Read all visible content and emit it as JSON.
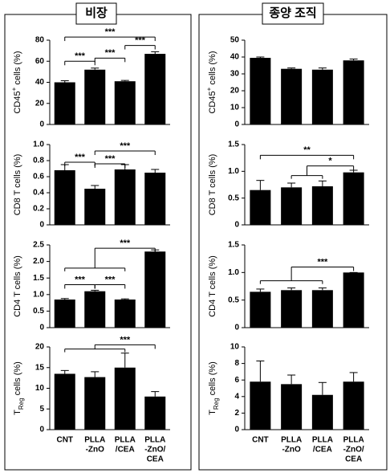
{
  "chart_data": [
    {
      "type": "bar",
      "title": "비장",
      "ylabel": [
        {
          "text": "CD45"
        },
        {
          "text": "+",
          "shift": "super"
        },
        {
          "text": " cells  (%)"
        }
      ],
      "categories": [
        null,
        null,
        null,
        null
      ],
      "values": [
        40,
        52,
        41,
        67
      ],
      "errors": [
        1.5,
        1.5,
        0.8,
        2
      ],
      "color": "#000000",
      "ylim": [
        0,
        80
      ],
      "yticks": [
        0,
        20,
        40,
        60,
        80
      ],
      "annotations": [
        {
          "text": "***",
          "from": 0,
          "to": 3,
          "y": 83
        },
        {
          "text": "***",
          "from": 0,
          "to": 1,
          "y": 60
        },
        {
          "text": "***",
          "from": 1,
          "to": 2,
          "y": 63
        },
        {
          "text": "***",
          "from": 2,
          "to": 3,
          "y": 75
        }
      ]
    },
    {
      "type": "bar",
      "ylabel": [
        {
          "text": "CD8  T cells  (%)"
        }
      ],
      "categories": [
        null,
        null,
        null,
        null
      ],
      "values": [
        0.68,
        0.45,
        0.69,
        0.65
      ],
      "errors": [
        0.07,
        0.04,
        0.06,
        0.04
      ],
      "color": "#000000",
      "ylim": [
        0,
        1
      ],
      "yticks": [
        0,
        0.2,
        0.4,
        0.6,
        0.8,
        {
          "value": 1,
          "label": "1.0"
        }
      ],
      "annotations": [
        {
          "text": "***",
          "from": 0,
          "to": 1,
          "y": 0.78
        },
        {
          "text": "***",
          "from": 1,
          "to": 3,
          "y": 0.92
        },
        {
          "text": "***",
          "from": 1,
          "to": 2,
          "y": 0.76
        }
      ]
    },
    {
      "type": "bar",
      "ylabel": [
        {
          "text": "CD4  T cells  (%)"
        }
      ],
      "categories": [
        null,
        null,
        null,
        null
      ],
      "values": [
        0.85,
        1.1,
        0.85,
        2.3
      ],
      "errors": [
        0.03,
        0.03,
        0.02,
        0.05
      ],
      "color": "#000000",
      "ylim": [
        0,
        2.5
      ],
      "yticks": [
        0,
        0.5,
        {
          "value": 1,
          "label": "1.0"
        },
        1.5,
        {
          "value": 2,
          "label": "2.0"
        },
        2.5
      ],
      "annotations": [
        {
          "text": "***",
          "from": 0,
          "to": 1,
          "y": 1.3
        },
        {
          "text": "***",
          "from": 1,
          "to": 2,
          "y": 1.3
        },
        {
          "text": "***",
          "from": [
            0,
            2
          ],
          "y": 1.8,
          "to": 3,
          "y2": 2.4
        }
      ]
    },
    {
      "type": "bar",
      "ylabel": [
        {
          "text": "T"
        },
        {
          "text": "Reg",
          "shift": "sub"
        },
        {
          "text": " cells  (%)"
        }
      ],
      "categories": [
        [
          "CNT"
        ],
        [
          "PLLA",
          "-ZnO"
        ],
        [
          "PLLA",
          "/CEA"
        ],
        [
          "PLLA",
          "-ZnO/",
          "CEA"
        ]
      ],
      "values": [
        13.5,
        12.7,
        15,
        8
      ],
      "errors": [
        0.8,
        1.3,
        3.5,
        1.2
      ],
      "color": "#000000",
      "ylim": [
        0,
        20
      ],
      "yticks": [
        0,
        5,
        10,
        15,
        20
      ],
      "annotations": [
        {
          "text": "***",
          "from": [
            0,
            2
          ],
          "y": 19.5,
          "to": 3,
          "y2": 20.5
        }
      ]
    },
    {
      "type": "bar",
      "title": "종양 조직",
      "ylabel": [
        {
          "text": "CD45"
        },
        {
          "text": "+",
          "shift": "super"
        },
        {
          "text": " cells  (%)"
        }
      ],
      "categories": [
        null,
        null,
        null,
        null
      ],
      "values": [
        39.5,
        33,
        32.5,
        38
      ],
      "errors": [
        0.5,
        0.5,
        1,
        0.8
      ],
      "color": "#000000",
      "ylim": [
        0,
        50
      ],
      "yticks": [
        0,
        10,
        20,
        30,
        40,
        50
      ],
      "annotations": []
    },
    {
      "type": "bar",
      "ylabel": [
        {
          "text": "CD8  T cells  (%)"
        }
      ],
      "categories": [
        null,
        null,
        null,
        null
      ],
      "values": [
        0.65,
        0.7,
        0.72,
        0.98
      ],
      "errors": [
        0.18,
        0.08,
        0.1,
        0.04
      ],
      "color": "#000000",
      "ylim": [
        0,
        1.5
      ],
      "yticks": [
        0,
        0.5,
        {
          "value": 1,
          "label": "1.0"
        },
        1.5
      ],
      "annotations": [
        {
          "text": "**",
          "from": 0,
          "to": 3,
          "y": 1.3
        },
        {
          "text": "*",
          "from": [
            1,
            2
          ],
          "y": 0.92,
          "to": 3,
          "y2": 1.1
        }
      ]
    },
    {
      "type": "bar",
      "ylabel": [
        {
          "text": "CD4  T cells  (%)"
        }
      ],
      "categories": [
        null,
        null,
        null,
        null
      ],
      "values": [
        0.65,
        0.68,
        0.68,
        1
      ],
      "errors": [
        0.05,
        0.04,
        0.04,
        0
      ],
      "color": "#000000",
      "ylim": [
        0,
        1.5
      ],
      "yticks": [
        0,
        0.5,
        {
          "value": 1,
          "label": "1.0"
        },
        1.5
      ],
      "annotations": [
        {
          "text": "***",
          "from": [
            0,
            2
          ],
          "y": 0.85,
          "to": 3,
          "y2": 1.1
        }
      ]
    },
    {
      "type": "bar",
      "ylabel": [
        {
          "text": "T"
        },
        {
          "text": "Reg",
          "shift": "sub"
        },
        {
          "text": " cells  (%)"
        }
      ],
      "categories": [
        [
          "CNT"
        ],
        [
          "PLLA",
          "-ZnO"
        ],
        [
          "PLLA",
          "/CEA"
        ],
        [
          "PLLA",
          "-ZnO/",
          "CEA"
        ]
      ],
      "values": [
        5.8,
        5.5,
        4.2,
        5.8
      ],
      "errors": [
        2.5,
        1.1,
        1.5,
        1.1
      ],
      "color": "#000000",
      "ylim": [
        0,
        10
      ],
      "yticks": [
        0,
        2,
        4,
        6,
        8,
        10
      ],
      "annotations": []
    }
  ]
}
